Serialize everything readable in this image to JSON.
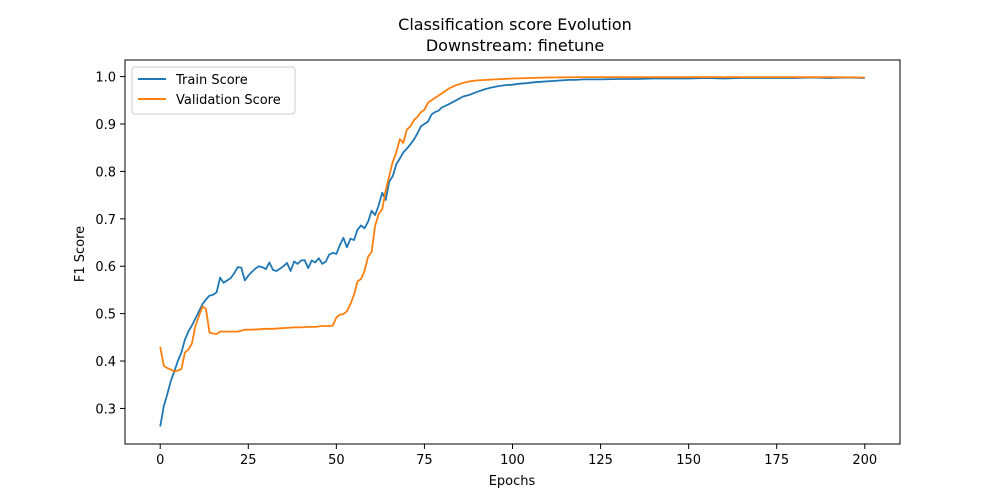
{
  "chart_data": {
    "type": "line",
    "title": "Classification score Evolution",
    "subtitle": "Downstream: finetune",
    "xlabel": "Epochs",
    "ylabel": "F1 Score",
    "xlim": [
      -10,
      210
    ],
    "ylim": [
      0.225,
      1.035
    ],
    "xticks": [
      0,
      25,
      50,
      75,
      100,
      125,
      150,
      175,
      200
    ],
    "yticks": [
      0.3,
      0.4,
      0.5,
      0.6,
      0.7,
      0.8,
      0.9,
      1.0
    ],
    "xtick_labels": [
      "0",
      "25",
      "50",
      "75",
      "100",
      "125",
      "150",
      "175",
      "200"
    ],
    "ytick_labels": [
      "0.3",
      "0.4",
      "0.5",
      "0.6",
      "0.7",
      "0.8",
      "0.9",
      "1.0"
    ],
    "grid": false,
    "legend_position": "top-left",
    "series": [
      {
        "name": "Train Score",
        "color": "#1f77b4",
        "points": [
          [
            0,
            0.262
          ],
          [
            1,
            0.305
          ],
          [
            2,
            0.33
          ],
          [
            3,
            0.358
          ],
          [
            4,
            0.378
          ],
          [
            5,
            0.4
          ],
          [
            6,
            0.418
          ],
          [
            7,
            0.445
          ],
          [
            8,
            0.462
          ],
          [
            9,
            0.475
          ],
          [
            10,
            0.49
          ],
          [
            11,
            0.505
          ],
          [
            12,
            0.52
          ],
          [
            13,
            0.53
          ],
          [
            14,
            0.538
          ],
          [
            15,
            0.54
          ],
          [
            16,
            0.545
          ],
          [
            17,
            0.576
          ],
          [
            18,
            0.565
          ],
          [
            19,
            0.57
          ],
          [
            20,
            0.575
          ],
          [
            21,
            0.585
          ],
          [
            22,
            0.598
          ],
          [
            23,
            0.597
          ],
          [
            24,
            0.57
          ],
          [
            25,
            0.58
          ],
          [
            26,
            0.588
          ],
          [
            27,
            0.595
          ],
          [
            28,
            0.6
          ],
          [
            29,
            0.598
          ],
          [
            30,
            0.594
          ],
          [
            31,
            0.608
          ],
          [
            32,
            0.592
          ],
          [
            33,
            0.59
          ],
          [
            34,
            0.595
          ],
          [
            35,
            0.6
          ],
          [
            36,
            0.607
          ],
          [
            37,
            0.59
          ],
          [
            38,
            0.61
          ],
          [
            39,
            0.605
          ],
          [
            40,
            0.612
          ],
          [
            41,
            0.613
          ],
          [
            42,
            0.596
          ],
          [
            43,
            0.612
          ],
          [
            44,
            0.608
          ],
          [
            45,
            0.617
          ],
          [
            46,
            0.605
          ],
          [
            47,
            0.61
          ],
          [
            48,
            0.625
          ],
          [
            49,
            0.628
          ],
          [
            50,
            0.626
          ],
          [
            51,
            0.645
          ],
          [
            52,
            0.66
          ],
          [
            53,
            0.64
          ],
          [
            54,
            0.658
          ],
          [
            55,
            0.655
          ],
          [
            56,
            0.677
          ],
          [
            57,
            0.686
          ],
          [
            58,
            0.68
          ],
          [
            59,
            0.694
          ],
          [
            60,
            0.717
          ],
          [
            61,
            0.708
          ],
          [
            62,
            0.728
          ],
          [
            63,
            0.755
          ],
          [
            64,
            0.74
          ],
          [
            65,
            0.778
          ],
          [
            66,
            0.79
          ],
          [
            67,
            0.815
          ],
          [
            68,
            0.827
          ],
          [
            69,
            0.84
          ],
          [
            70,
            0.848
          ],
          [
            71,
            0.857
          ],
          [
            72,
            0.867
          ],
          [
            73,
            0.88
          ],
          [
            74,
            0.895
          ],
          [
            75,
            0.9
          ],
          [
            76,
            0.905
          ],
          [
            77,
            0.92
          ],
          [
            78,
            0.925
          ],
          [
            79,
            0.928
          ],
          [
            80,
            0.935
          ],
          [
            82,
            0.942
          ],
          [
            84,
            0.95
          ],
          [
            86,
            0.958
          ],
          [
            88,
            0.962
          ],
          [
            90,
            0.968
          ],
          [
            92,
            0.973
          ],
          [
            94,
            0.977
          ],
          [
            96,
            0.98
          ],
          [
            98,
            0.982
          ],
          [
            100,
            0.983
          ],
          [
            102,
            0.985
          ],
          [
            104,
            0.986
          ],
          [
            106,
            0.988
          ],
          [
            108,
            0.989
          ],
          [
            110,
            0.99
          ],
          [
            112,
            0.991
          ],
          [
            114,
            0.992
          ],
          [
            116,
            0.993
          ],
          [
            118,
            0.993
          ],
          [
            120,
            0.994
          ],
          [
            125,
            0.994
          ],
          [
            130,
            0.995
          ],
          [
            135,
            0.995
          ],
          [
            140,
            0.996
          ],
          [
            145,
            0.996
          ],
          [
            150,
            0.996
          ],
          [
            155,
            0.997
          ],
          [
            160,
            0.996
          ],
          [
            165,
            0.997
          ],
          [
            170,
            0.997
          ],
          [
            175,
            0.997
          ],
          [
            180,
            0.997
          ],
          [
            185,
            0.998
          ],
          [
            190,
            0.997
          ],
          [
            195,
            0.998
          ],
          [
            200,
            0.997
          ]
        ]
      },
      {
        "name": "Validation Score",
        "color": "#ff7f0e",
        "points": [
          [
            0,
            0.43
          ],
          [
            1,
            0.39
          ],
          [
            2,
            0.385
          ],
          [
            3,
            0.382
          ],
          [
            4,
            0.378
          ],
          [
            5,
            0.38
          ],
          [
            6,
            0.383
          ],
          [
            7,
            0.418
          ],
          [
            8,
            0.424
          ],
          [
            9,
            0.437
          ],
          [
            10,
            0.475
          ],
          [
            11,
            0.495
          ],
          [
            12,
            0.515
          ],
          [
            13,
            0.51
          ],
          [
            14,
            0.46
          ],
          [
            15,
            0.458
          ],
          [
            16,
            0.457
          ],
          [
            17,
            0.462
          ],
          [
            18,
            0.462
          ],
          [
            20,
            0.462
          ],
          [
            22,
            0.462
          ],
          [
            24,
            0.466
          ],
          [
            26,
            0.466
          ],
          [
            28,
            0.467
          ],
          [
            30,
            0.468
          ],
          [
            32,
            0.468
          ],
          [
            34,
            0.469
          ],
          [
            36,
            0.47
          ],
          [
            38,
            0.471
          ],
          [
            40,
            0.471
          ],
          [
            42,
            0.472
          ],
          [
            44,
            0.472
          ],
          [
            46,
            0.474
          ],
          [
            48,
            0.474
          ],
          [
            49,
            0.475
          ],
          [
            50,
            0.492
          ],
          [
            51,
            0.498
          ],
          [
            52,
            0.499
          ],
          [
            53,
            0.505
          ],
          [
            54,
            0.52
          ],
          [
            55,
            0.54
          ],
          [
            56,
            0.568
          ],
          [
            57,
            0.573
          ],
          [
            58,
            0.59
          ],
          [
            59,
            0.62
          ],
          [
            60,
            0.63
          ],
          [
            61,
            0.685
          ],
          [
            62,
            0.71
          ],
          [
            63,
            0.72
          ],
          [
            64,
            0.76
          ],
          [
            65,
            0.79
          ],
          [
            66,
            0.82
          ],
          [
            67,
            0.84
          ],
          [
            68,
            0.868
          ],
          [
            69,
            0.86
          ],
          [
            70,
            0.888
          ],
          [
            71,
            0.895
          ],
          [
            72,
            0.908
          ],
          [
            73,
            0.915
          ],
          [
            74,
            0.925
          ],
          [
            75,
            0.93
          ],
          [
            76,
            0.945
          ],
          [
            77,
            0.95
          ],
          [
            78,
            0.955
          ],
          [
            79,
            0.96
          ],
          [
            80,
            0.965
          ],
          [
            82,
            0.975
          ],
          [
            84,
            0.982
          ],
          [
            86,
            0.987
          ],
          [
            88,
            0.99
          ],
          [
            90,
            0.992
          ],
          [
            95,
            0.994
          ],
          [
            100,
            0.996
          ],
          [
            105,
            0.997
          ],
          [
            110,
            0.998
          ],
          [
            120,
            0.999
          ],
          [
            130,
            0.999
          ],
          [
            140,
            0.999
          ],
          [
            150,
            0.999
          ],
          [
            160,
            0.999
          ],
          [
            170,
            0.999
          ],
          [
            180,
            0.999
          ],
          [
            190,
            0.999
          ],
          [
            200,
            0.998
          ]
        ]
      }
    ]
  }
}
